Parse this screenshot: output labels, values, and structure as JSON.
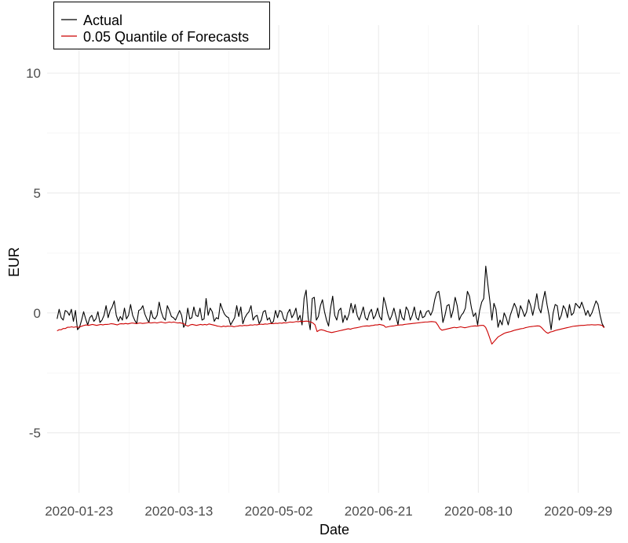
{
  "chart_data": {
    "type": "line",
    "title": "",
    "xlabel": "Date",
    "ylabel": "EUR",
    "x_start": "2020-01-12",
    "x_end": "2020-10-12",
    "xlim": [
      "2020-01-07",
      "2020-10-20"
    ],
    "ylim": [
      -7.5,
      12
    ],
    "y_ticks": [
      -5,
      0,
      5,
      10
    ],
    "x_ticks": [
      "2020-01-23",
      "2020-03-13",
      "2020-05-02",
      "2020-06-21",
      "2020-08-10",
      "2020-09-29"
    ],
    "grid": true,
    "legend_position": "top-left",
    "series": [
      {
        "name": "Actual",
        "color": "#000000",
        "values": [
          -0.25,
          0.15,
          -0.2,
          -0.3,
          0.1,
          0.05,
          -0.1,
          0.15,
          -0.35,
          0.1,
          -0.7,
          -0.6,
          -0.3,
          0.05,
          -0.25,
          -0.5,
          -0.2,
          -0.1,
          -0.35,
          -0.25,
          0.05,
          -0.4,
          -0.3,
          -0.1,
          0.3,
          -0.2,
          0.1,
          0.25,
          0.5,
          -0.1,
          -0.35,
          -0.15,
          -0.3,
          0.2,
          -0.25,
          -0.1,
          0.35,
          -0.1,
          -0.3,
          -0.45,
          0.1,
          0.15,
          0.3,
          -0.05,
          -0.25,
          -0.4,
          0.1,
          -0.2,
          -0.25,
          -0.1,
          0.45,
          0.05,
          -0.2,
          -0.3,
          0.3,
          0.1,
          -0.15,
          -0.2,
          -0.3,
          -0.1,
          0.1,
          -0.1,
          -0.6,
          -0.45,
          0.2,
          -0.25,
          -0.2,
          0.25,
          -0.1,
          -0.15,
          0.2,
          -0.3,
          -0.25,
          0.6,
          -0.1,
          0.2,
          0.05,
          -0.35,
          -0.2,
          -0.25,
          0.4,
          0.15,
          -0.05,
          -0.15,
          -0.2,
          -0.5,
          -0.35,
          -0.2,
          0.3,
          -0.15,
          0.25,
          -0.45,
          -0.2,
          -0.05,
          0.05,
          0.3,
          -0.3,
          -0.15,
          -0.1,
          -0.45,
          -0.3,
          0.05,
          0.1,
          -0.3,
          -0.2,
          -0.45,
          -0.35,
          0.1,
          -0.2,
          0.1,
          0.05,
          -0.25,
          -0.35,
          0.0,
          0.15,
          -0.2,
          -0.05,
          0.2,
          -0.3,
          -0.1,
          -0.5,
          0.6,
          0.95,
          -0.2,
          -0.7,
          0.6,
          0.65,
          -0.3,
          -0.15,
          0.3,
          0.55,
          0.05,
          -0.3,
          -0.55,
          0.2,
          0.7,
          -0.1,
          -0.3,
          0.1,
          0.2,
          -0.4,
          -0.1,
          -0.3,
          -0.05,
          0.4,
          0.0,
          0.35,
          -0.1,
          -0.3,
          -0.05,
          0.25,
          -0.2,
          -0.3,
          0.0,
          0.15,
          -0.25,
          -0.1,
          0.2,
          -0.15,
          -0.3,
          0.65,
          0.35,
          -0.05,
          -0.3,
          -0.1,
          0.2,
          -0.15,
          -0.5,
          0.15,
          -0.2,
          -0.3,
          0.25,
          0.1,
          -0.3,
          -0.1,
          0.25,
          -0.2,
          -0.3,
          0.1,
          -0.2,
          -0.15,
          0.05,
          0.1,
          -0.1,
          0.1,
          0.55,
          0.85,
          0.9,
          0.4,
          -0.4,
          -0.1,
          0.3,
          0.35,
          -0.2,
          0.1,
          0.65,
          0.3,
          -0.3,
          -0.1,
          0.0,
          0.2,
          0.9,
          0.7,
          0.2,
          -0.15,
          0.0,
          -0.5,
          0.1,
          0.45,
          0.6,
          1.95,
          1.2,
          0.5,
          -0.3,
          0.4,
          0.15,
          -0.6,
          -0.3,
          -0.5,
          0.0,
          -0.2,
          -0.5,
          -0.1,
          0.15,
          0.4,
          0.2,
          -0.2,
          0.3,
          0.1,
          -0.15,
          0.05,
          0.55,
          0.3,
          -0.1,
          0.3,
          0.8,
          0.2,
          0.0,
          0.5,
          0.9,
          0.35,
          -0.1,
          -0.7,
          0.0,
          0.35,
          0.3,
          -0.3,
          -0.1,
          0.3,
          0.15,
          -0.2,
          0.35,
          -0.1,
          0.0,
          0.4,
          0.3,
          0.2,
          0.45,
          0.2,
          -0.1,
          0.1,
          -0.15,
          0.0,
          0.25,
          0.5,
          0.35,
          -0.1,
          -0.45,
          -0.6
        ]
      },
      {
        "name": "0.05 Quantile of Forecasts",
        "color": "#cc0000",
        "values": [
          -0.75,
          -0.7,
          -0.7,
          -0.65,
          -0.65,
          -0.6,
          -0.6,
          -0.58,
          -0.6,
          -0.58,
          -0.6,
          -0.58,
          -0.55,
          -0.52,
          -0.5,
          -0.52,
          -0.5,
          -0.48,
          -0.5,
          -0.52,
          -0.5,
          -0.48,
          -0.5,
          -0.48,
          -0.48,
          -0.47,
          -0.45,
          -0.46,
          -0.48,
          -0.5,
          -0.46,
          -0.45,
          -0.46,
          -0.44,
          -0.46,
          -0.44,
          -0.42,
          -0.43,
          -0.45,
          -0.43,
          -0.42,
          -0.44,
          -0.43,
          -0.42,
          -0.4,
          -0.42,
          -0.41,
          -0.4,
          -0.42,
          -0.4,
          -0.38,
          -0.4,
          -0.42,
          -0.4,
          -0.38,
          -0.4,
          -0.38,
          -0.4,
          -0.42,
          -0.41,
          -0.43,
          -0.45,
          -0.52,
          -0.55,
          -0.5,
          -0.48,
          -0.5,
          -0.52,
          -0.5,
          -0.48,
          -0.5,
          -0.48,
          -0.5,
          -0.46,
          -0.48,
          -0.5,
          -0.52,
          -0.55,
          -0.56,
          -0.58,
          -0.55,
          -0.57,
          -0.55,
          -0.56,
          -0.55,
          -0.58,
          -0.56,
          -0.55,
          -0.53,
          -0.54,
          -0.52,
          -0.53,
          -0.52,
          -0.5,
          -0.51,
          -0.49,
          -0.5,
          -0.48,
          -0.47,
          -0.48,
          -0.46,
          -0.47,
          -0.45,
          -0.44,
          -0.45,
          -0.43,
          -0.44,
          -0.42,
          -0.43,
          -0.41,
          -0.42,
          -0.4,
          -0.38,
          -0.39,
          -0.38,
          -0.36,
          -0.37,
          -0.35,
          -0.36,
          -0.35,
          -0.34,
          -0.36,
          -0.38,
          -0.42,
          -0.5,
          -0.78,
          -0.72,
          -0.7,
          -0.72,
          -0.75,
          -0.78,
          -0.8,
          -0.82,
          -0.8,
          -0.78,
          -0.76,
          -0.74,
          -0.72,
          -0.7,
          -0.68,
          -0.66,
          -0.68,
          -0.65,
          -0.63,
          -0.62,
          -0.6,
          -0.58,
          -0.56,
          -0.55,
          -0.54,
          -0.55,
          -0.53,
          -0.52,
          -0.5,
          -0.5,
          -0.48,
          -0.5,
          -0.52,
          -0.6,
          -0.58,
          -0.56,
          -0.55,
          -0.54,
          -0.52,
          -0.51,
          -0.5,
          -0.5,
          -0.48,
          -0.47,
          -0.46,
          -0.45,
          -0.44,
          -0.43,
          -0.42,
          -0.41,
          -0.4,
          -0.39,
          -0.38,
          -0.38,
          -0.37,
          -0.36,
          -0.37,
          -0.38,
          -0.5,
          -0.65,
          -0.72,
          -0.7,
          -0.68,
          -0.66,
          -0.64,
          -0.62,
          -0.6,
          -0.62,
          -0.6,
          -0.58,
          -0.6,
          -0.62,
          -0.6,
          -0.58,
          -0.56,
          -0.55,
          -0.54,
          -0.55,
          -0.53,
          -0.52,
          -0.52,
          -0.6,
          -0.8,
          -1.05,
          -1.3,
          -1.2,
          -1.1,
          -1.0,
          -0.95,
          -0.9,
          -0.85,
          -0.82,
          -0.8,
          -0.78,
          -0.75,
          -0.72,
          -0.7,
          -0.68,
          -0.66,
          -0.65,
          -0.62,
          -0.6,
          -0.58,
          -0.57,
          -0.56,
          -0.55,
          -0.54,
          -0.55,
          -0.62,
          -0.72,
          -0.8,
          -0.85,
          -0.8,
          -0.78,
          -0.75,
          -0.72,
          -0.7,
          -0.68,
          -0.66,
          -0.64,
          -0.62,
          -0.6,
          -0.58,
          -0.56,
          -0.55,
          -0.54,
          -0.53,
          -0.52,
          -0.52,
          -0.51,
          -0.5,
          -0.5,
          -0.49,
          -0.5,
          -0.5,
          -0.49,
          -0.5,
          -0.52,
          -0.62
        ]
      }
    ]
  }
}
